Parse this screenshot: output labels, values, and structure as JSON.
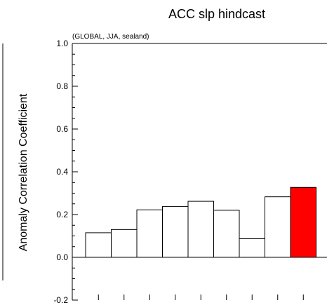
{
  "chart_data": {
    "type": "bar",
    "title": "ACC slp hindcast",
    "subtitle": "(GLOBAL, JJA, sealand)",
    "xlabel": "",
    "ylabel": "Anomaly Correlation Coefficient",
    "ylim": [
      -0.2,
      1.0
    ],
    "yticks": [
      "1.0",
      "0.8",
      "0.6",
      "0.4",
      "0.2",
      "0.0",
      "-0.2"
    ],
    "values": [
      0.115,
      0.13,
      0.222,
      0.238,
      0.262,
      0.22,
      0.087,
      0.283,
      0.327
    ],
    "highlight_index": 8,
    "bar_fill": "#ffffff",
    "highlight_fill": "#ff0000",
    "edge_color": "#000000",
    "grid": false,
    "zero_line": true
  }
}
